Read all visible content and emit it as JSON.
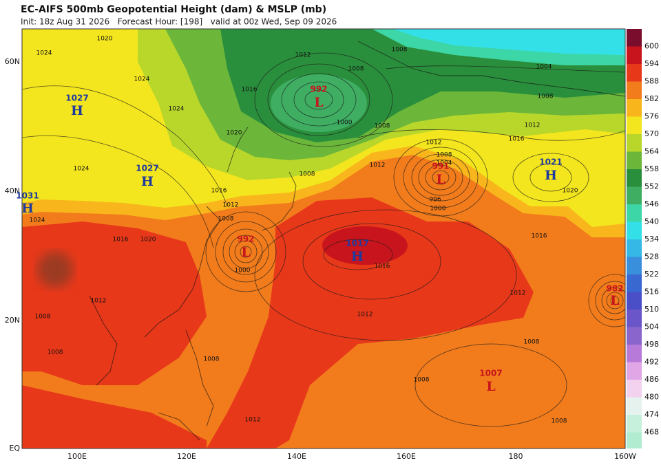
{
  "header": {
    "title": "EC-AIFS 500mb Geopotential Height (dam) & MSLP (mb)",
    "subtitle": "Init: 18z Aug 31 2026   Forecast Hour: [198]   valid at 00z Wed, Sep 09 2026"
  },
  "colorbar": {
    "labels": [
      600,
      594,
      588,
      582,
      576,
      570,
      564,
      558,
      552,
      546,
      540,
      534,
      528,
      522,
      516,
      510,
      504,
      498,
      492,
      486,
      480,
      474,
      468
    ],
    "colors": [
      "#7a0c2e",
      "#c8141c",
      "#e8381a",
      "#f27c1c",
      "#f8b61c",
      "#f4e61e",
      "#b9d72b",
      "#6cb73a",
      "#2a8f3c",
      "#3fae63",
      "#3dd6a6",
      "#33e0e8",
      "#35b8e6",
      "#3a8fdc",
      "#3868d0",
      "#4a4fc8",
      "#6a56c8",
      "#8a66cc",
      "#b87ad8",
      "#e0a6e6",
      "#f2d2ee",
      "#e6f2ee",
      "#c6f0dc",
      "#b2ecd0"
    ]
  },
  "lat_labels": [
    "60N",
    "40N",
    "20N",
    "EQ"
  ],
  "lon_labels": [
    "100E",
    "120E",
    "140E",
    "160E",
    "180",
    "160W"
  ],
  "pressure_centers": [
    {
      "letter": "H",
      "value": "1027"
    },
    {
      "letter": "H",
      "value": "1027"
    },
    {
      "letter": "H",
      "value": "1031"
    },
    {
      "letter": "L",
      "value": "992"
    },
    {
      "letter": "L",
      "value": "991"
    },
    {
      "letter": "L",
      "value": "992"
    },
    {
      "letter": "H",
      "value": "1017"
    },
    {
      "letter": "H",
      "value": "1021"
    },
    {
      "letter": "L",
      "value": "982"
    },
    {
      "letter": "L",
      "value": "1007"
    }
  ],
  "contour_labels": [
    "1024",
    "1020",
    "1024",
    "1024",
    "1024",
    "1020",
    "1016",
    "1012",
    "1008",
    "1008",
    "1008",
    "1012",
    "1012",
    "1012",
    "1008",
    "1008",
    "1008",
    "1016",
    "1020",
    "1016",
    "1012",
    "1008",
    "1004",
    "1008",
    "1012",
    "1008",
    "1016",
    "1000",
    "1008",
    "1012",
    "1008",
    "1004",
    "996",
    "1000",
    "1012",
    "1016",
    "1012",
    "1008",
    "1000",
    "1016",
    "1008",
    "1020",
    "1024"
  ]
}
